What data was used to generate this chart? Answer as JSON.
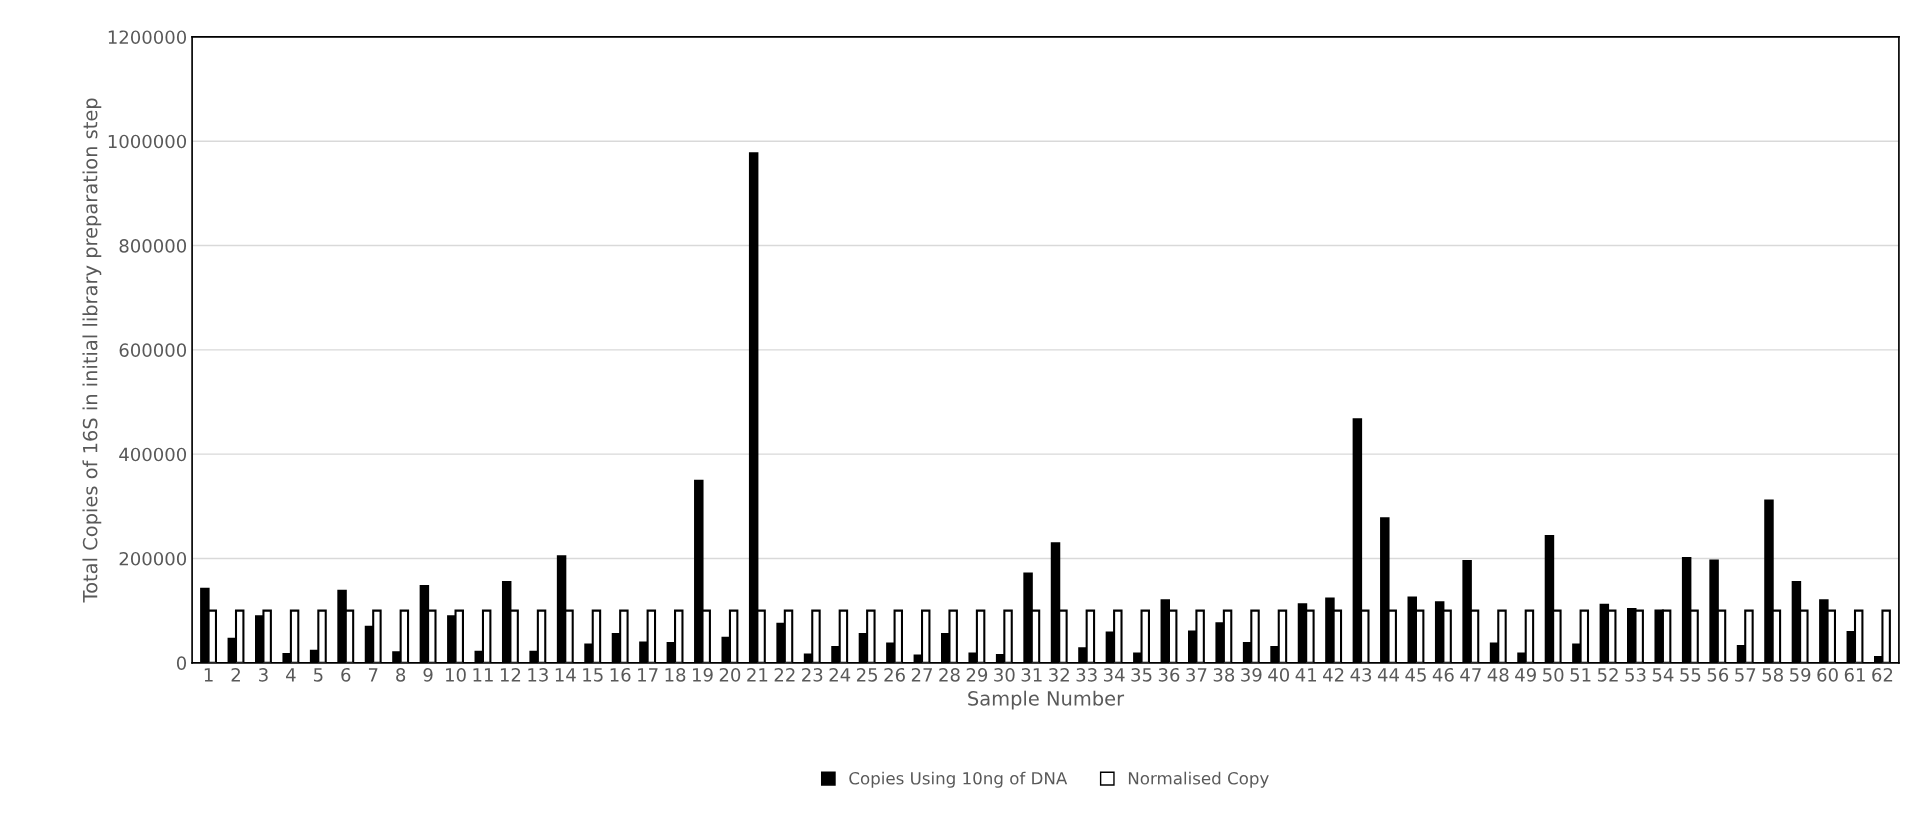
{
  "chart_data": {
    "type": "bar",
    "xlabel": "Sample Number",
    "ylabel": "Total Copies of 16S in initial library preparation step",
    "categories": [
      "1",
      "2",
      "3",
      "4",
      "5",
      "6",
      "7",
      "8",
      "9",
      "10",
      "11",
      "12",
      "13",
      "14",
      "15",
      "16",
      "17",
      "18",
      "19",
      "20",
      "21",
      "22",
      "23",
      "24",
      "25",
      "26",
      "27",
      "28",
      "29",
      "30",
      "31",
      "32",
      "33",
      "34",
      "35",
      "36",
      "37",
      "38",
      "39",
      "40",
      "41",
      "42",
      "43",
      "44",
      "45",
      "46",
      "47",
      "48",
      "49",
      "50",
      "51",
      "52",
      "53",
      "54",
      "55",
      "56",
      "57",
      "58",
      "59",
      "60",
      "61",
      "62"
    ],
    "series": [
      {
        "name": "Copies Using 10ng of DNA",
        "color": "#000000",
        "values": [
          142000,
          46000,
          89000,
          17000,
          23000,
          138000,
          69000,
          20000,
          147000,
          89000,
          21000,
          155000,
          21000,
          204000,
          35000,
          55000,
          39000,
          38000,
          349000,
          48000,
          977000,
          75000,
          16000,
          30000,
          55000,
          37000,
          14000,
          55000,
          18000,
          15000,
          171000,
          229000,
          28000,
          58000,
          18000,
          120000,
          60000,
          76000,
          38000,
          30000,
          112000,
          123000,
          467000,
          277000,
          125000,
          116000,
          195000,
          37000,
          18000,
          243000,
          35000,
          111000,
          103000,
          100000,
          201000,
          196000,
          32000,
          311000,
          155000,
          120000,
          59000,
          11000
        ]
      },
      {
        "name": "Normalised Copy",
        "color": "#ffffff",
        "values": [
          100000,
          100000,
          100000,
          100000,
          100000,
          100000,
          100000,
          100000,
          100000,
          100000,
          100000,
          100000,
          100000,
          100000,
          100000,
          100000,
          100000,
          100000,
          100000,
          100000,
          100000,
          100000,
          100000,
          100000,
          100000,
          100000,
          100000,
          100000,
          100000,
          100000,
          100000,
          100000,
          100000,
          100000,
          100000,
          100000,
          100000,
          100000,
          100000,
          100000,
          100000,
          100000,
          100000,
          100000,
          100000,
          100000,
          100000,
          100000,
          100000,
          100000,
          100000,
          100000,
          100000,
          100000,
          100000,
          100000,
          100000,
          100000,
          100000,
          100000,
          100000,
          100000
        ]
      }
    ],
    "ylim": [
      0,
      1200000
    ],
    "yticks": [
      0,
      200000,
      400000,
      600000,
      800000,
      1000000,
      1200000
    ],
    "grid": "y",
    "legend": "bottom"
  }
}
